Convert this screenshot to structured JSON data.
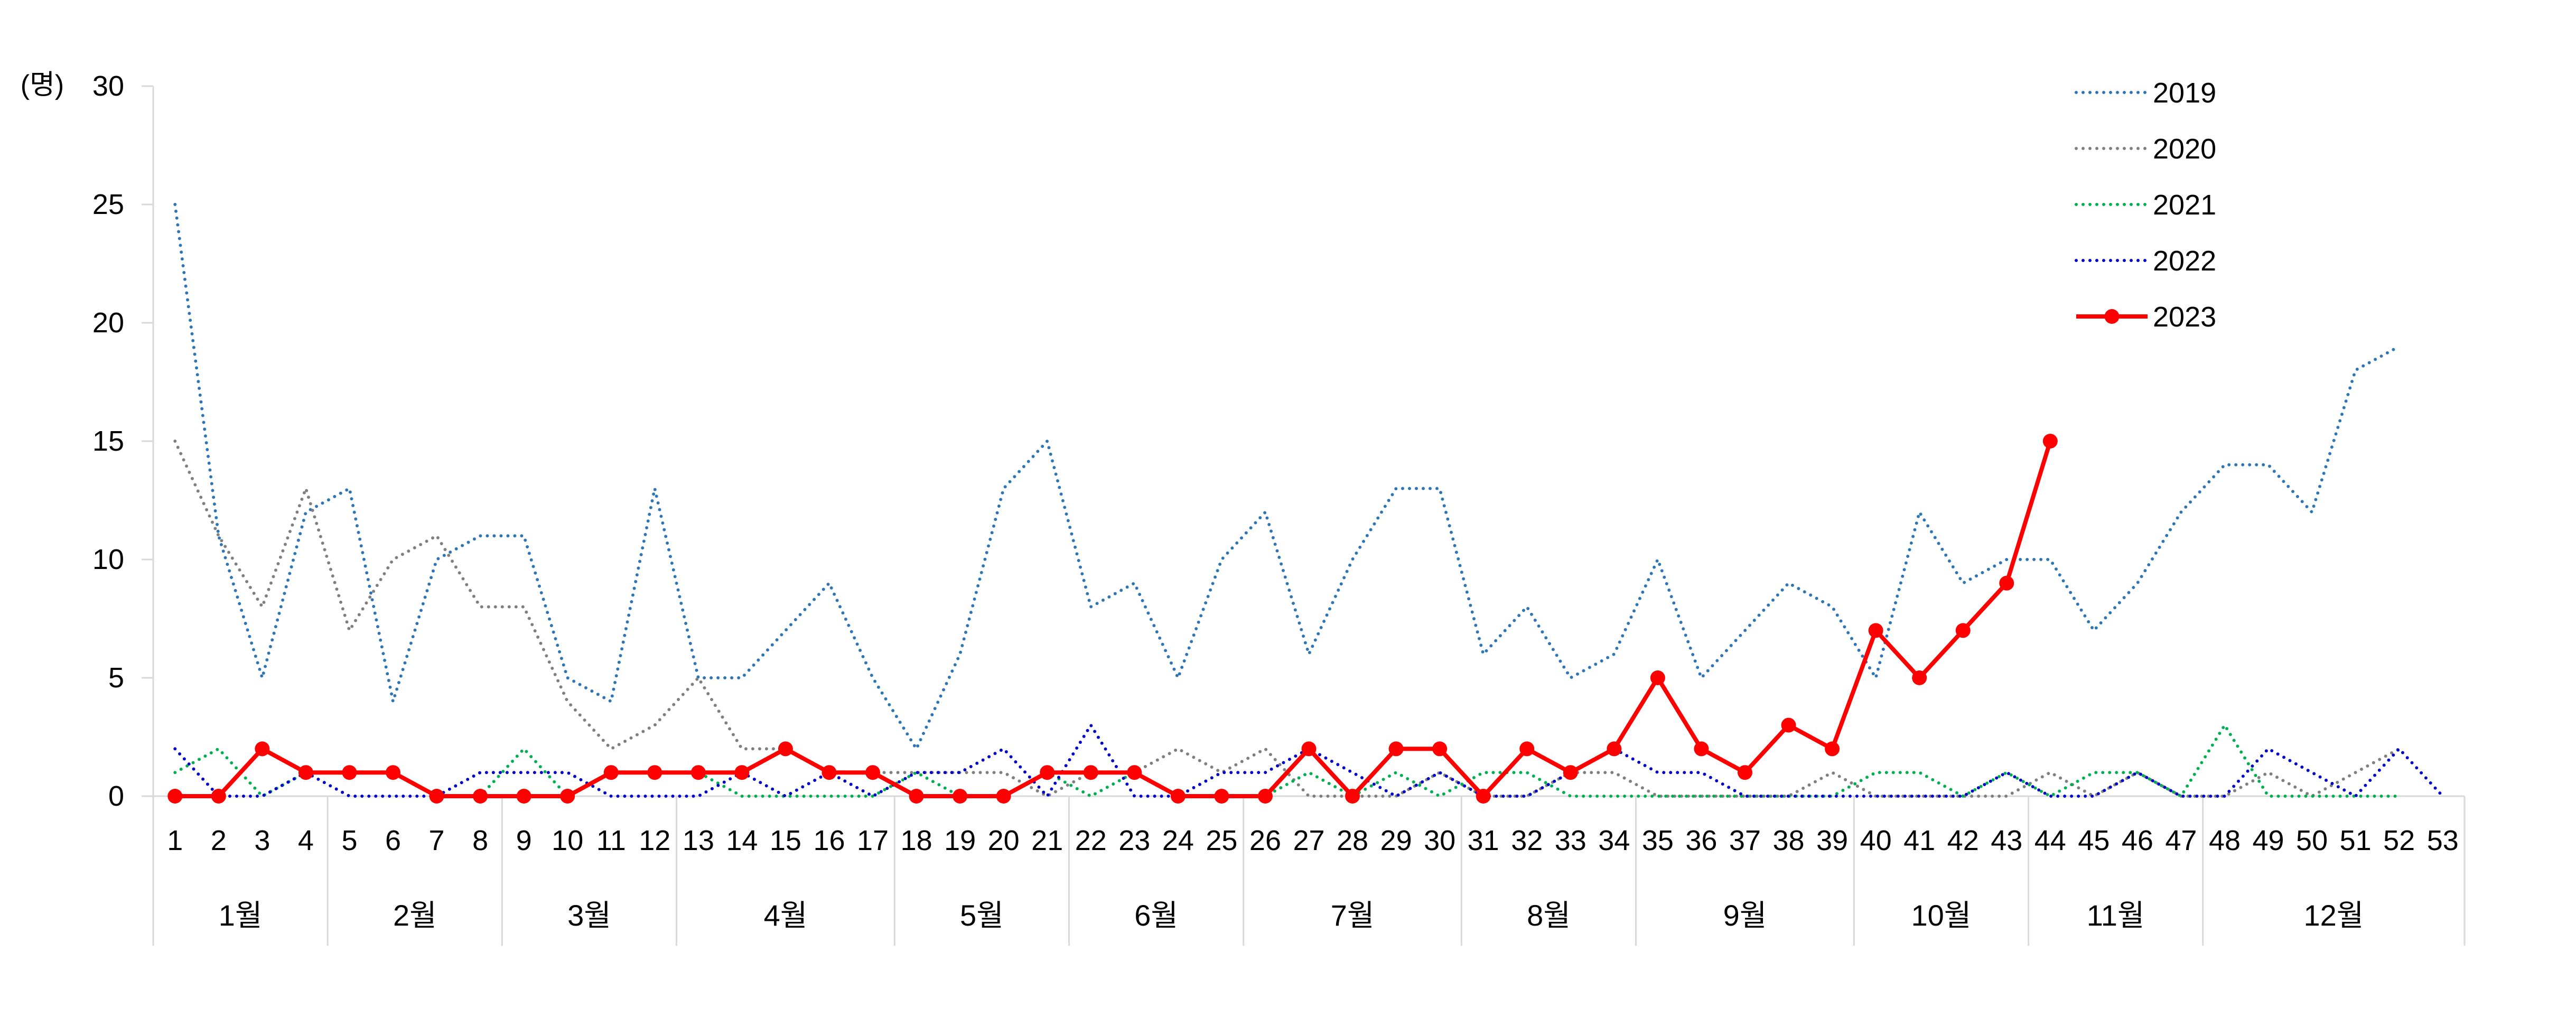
{
  "chart_data": {
    "type": "line",
    "ylabel": "(명)",
    "ylim": [
      0,
      30
    ],
    "yticks": [
      0,
      5,
      10,
      15,
      20,
      25,
      30
    ],
    "x": [
      1,
      2,
      3,
      4,
      5,
      6,
      7,
      8,
      9,
      10,
      11,
      12,
      13,
      14,
      15,
      16,
      17,
      18,
      19,
      20,
      21,
      22,
      23,
      24,
      25,
      26,
      27,
      28,
      29,
      30,
      31,
      32,
      33,
      34,
      35,
      36,
      37,
      38,
      39,
      40,
      41,
      42,
      43,
      44,
      45,
      46,
      47,
      48,
      49,
      50,
      51,
      52,
      53
    ],
    "months": [
      {
        "label": "1월",
        "weeks": [
          1,
          4
        ]
      },
      {
        "label": "2월",
        "weeks": [
          5,
          8
        ]
      },
      {
        "label": "3월",
        "weeks": [
          9,
          12
        ]
      },
      {
        "label": "4월",
        "weeks": [
          13,
          17
        ]
      },
      {
        "label": "5월",
        "weeks": [
          18,
          21
        ]
      },
      {
        "label": "6월",
        "weeks": [
          22,
          25
        ]
      },
      {
        "label": "7월",
        "weeks": [
          26,
          30
        ]
      },
      {
        "label": "8월",
        "weeks": [
          31,
          34
        ]
      },
      {
        "label": "9월",
        "weeks": [
          35,
          39
        ]
      },
      {
        "label": "10월",
        "weeks": [
          40,
          43
        ]
      },
      {
        "label": "11월",
        "weeks": [
          44,
          47
        ]
      },
      {
        "label": "12월",
        "weeks": [
          48,
          53
        ]
      }
    ],
    "legend_position": "top-right",
    "grid": false,
    "series": [
      {
        "name": "2019",
        "color": "#2e75b6",
        "style": "dotted",
        "values": [
          25,
          11,
          5,
          12,
          13,
          4,
          10,
          11,
          11,
          5,
          4,
          13,
          5,
          5,
          7,
          9,
          5,
          2,
          6,
          13,
          15,
          8,
          9,
          5,
          10,
          12,
          6,
          10,
          13,
          13,
          6,
          8,
          5,
          6,
          10,
          5,
          7,
          9,
          8,
          5,
          12,
          9,
          10,
          10,
          7,
          9,
          12,
          14,
          14,
          12,
          18,
          19,
          null
        ]
      },
      {
        "name": "2020",
        "color": "#7f7f7f",
        "style": "dotted",
        "values": [
          15,
          11,
          8,
          13,
          7,
          10,
          11,
          8,
          8,
          4,
          2,
          3,
          5,
          2,
          2,
          1,
          1,
          1,
          1,
          1,
          0,
          1,
          1,
          2,
          1,
          2,
          0,
          0,
          0,
          1,
          0,
          0,
          1,
          1,
          0,
          0,
          0,
          0,
          1,
          0,
          0,
          0,
          0,
          1,
          0,
          1,
          0,
          0,
          1,
          0,
          1,
          2,
          null
        ]
      },
      {
        "name": "2021",
        "color": "#00b050",
        "style": "dotted",
        "values": [
          1,
          2,
          0,
          1,
          1,
          1,
          0,
          0,
          2,
          0,
          1,
          1,
          1,
          0,
          0,
          0,
          0,
          1,
          0,
          0,
          1,
          0,
          1,
          0,
          0,
          0,
          1,
          0,
          1,
          0,
          1,
          1,
          0,
          0,
          0,
          0,
          0,
          0,
          0,
          1,
          1,
          0,
          1,
          0,
          1,
          1,
          0,
          3,
          0,
          0,
          0,
          0,
          null
        ]
      },
      {
        "name": "2022",
        "color": "#0000cc",
        "style": "dotted",
        "values": [
          2,
          0,
          0,
          1,
          0,
          0,
          0,
          1,
          1,
          1,
          0,
          0,
          0,
          1,
          0,
          1,
          0,
          1,
          1,
          2,
          0,
          3,
          0,
          0,
          1,
          1,
          2,
          1,
          0,
          1,
          0,
          0,
          1,
          2,
          1,
          1,
          0,
          0,
          0,
          0,
          0,
          0,
          1,
          0,
          0,
          1,
          0,
          0,
          2,
          1,
          0,
          2,
          0
        ]
      },
      {
        "name": "2023",
        "color": "#ff0000",
        "style": "solid-marker",
        "values": [
          0,
          0,
          2,
          1,
          1,
          1,
          0,
          0,
          0,
          0,
          1,
          1,
          1,
          1,
          2,
          1,
          1,
          0,
          0,
          0,
          1,
          1,
          1,
          0,
          0,
          0,
          2,
          0,
          2,
          2,
          0,
          2,
          1,
          2,
          5,
          2,
          1,
          3,
          2,
          7,
          5,
          7,
          9,
          15,
          null,
          null,
          null,
          null,
          null,
          null,
          null,
          null,
          null
        ]
      }
    ]
  }
}
